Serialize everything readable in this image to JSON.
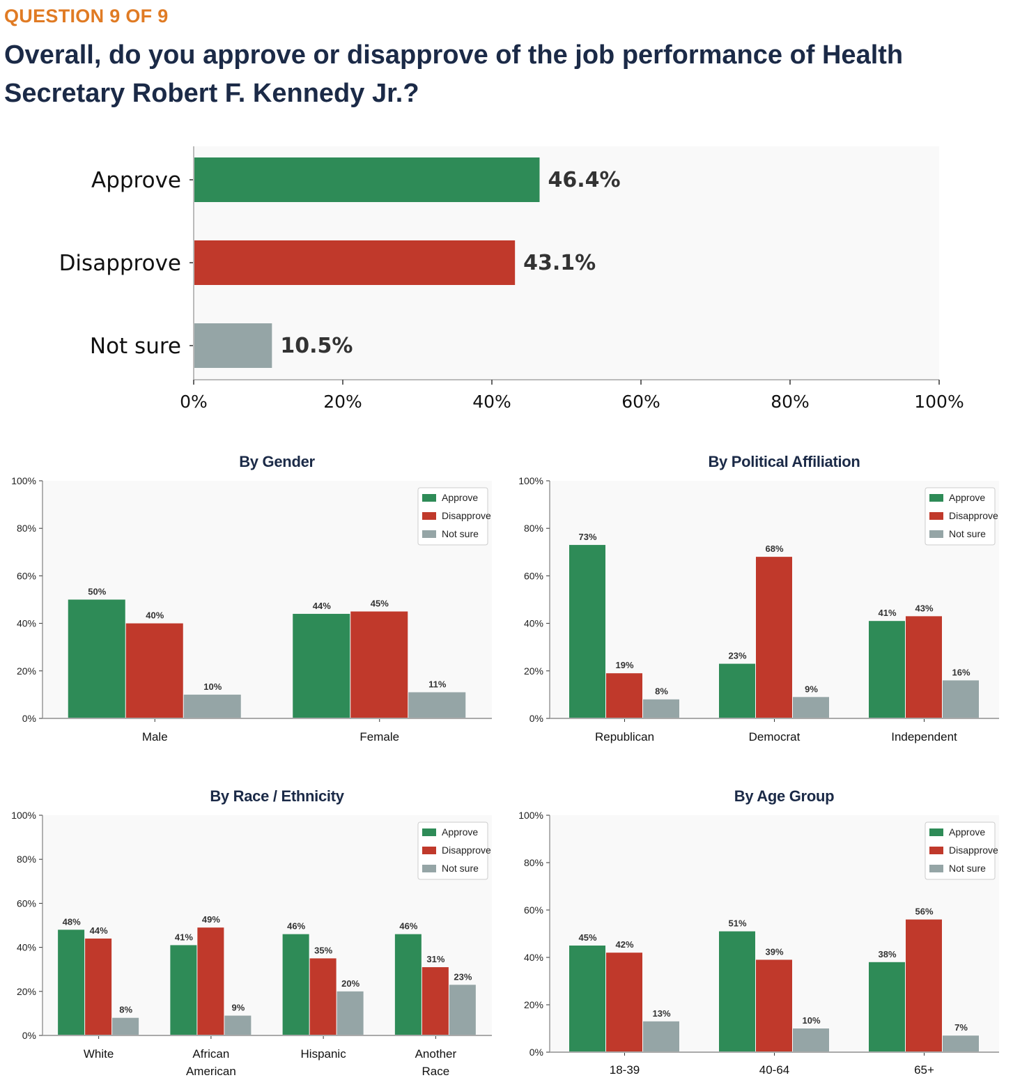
{
  "header": {
    "question_number": "QUESTION 9 OF 9",
    "question_text": "Overall, do you approve or disapprove of the job performance of Health Secretary Robert F. Kennedy Jr.?"
  },
  "colors": {
    "approve": "#2e8b57",
    "disapprove": "#c0392b",
    "not_sure": "#95a5a6",
    "panel_bg": "#f9f9f9"
  },
  "chart_data": [
    {
      "id": "overall",
      "type": "bar",
      "orientation": "horizontal",
      "title": "",
      "categories": [
        "Approve",
        "Disapprove",
        "Not sure"
      ],
      "values": [
        46.4,
        43.1,
        10.5
      ],
      "value_labels": [
        "46.4%",
        "43.1%",
        "10.5%"
      ],
      "xlim": [
        0,
        100
      ],
      "xticks": [
        "0%",
        "20%",
        "40%",
        "60%",
        "80%",
        "100%"
      ]
    },
    {
      "id": "gender",
      "type": "bar",
      "title": "By Gender",
      "categories": [
        "Male",
        "Female"
      ],
      "series": [
        {
          "name": "Approve",
          "values": [
            50,
            44
          ]
        },
        {
          "name": "Disapprove",
          "values": [
            40,
            45
          ]
        },
        {
          "name": "Not sure",
          "values": [
            10,
            11
          ]
        }
      ],
      "ylim": [
        0,
        100
      ],
      "yticks": [
        "0%",
        "20%",
        "40%",
        "60%",
        "80%",
        "100%"
      ],
      "legend": "top-right"
    },
    {
      "id": "party",
      "type": "bar",
      "title": "By Political Affiliation",
      "categories": [
        "Republican",
        "Democrat",
        "Independent"
      ],
      "series": [
        {
          "name": "Approve",
          "values": [
            73,
            23,
            41
          ]
        },
        {
          "name": "Disapprove",
          "values": [
            19,
            68,
            43
          ]
        },
        {
          "name": "Not sure",
          "values": [
            8,
            9,
            16
          ]
        }
      ],
      "ylim": [
        0,
        100
      ],
      "yticks": [
        "0%",
        "20%",
        "40%",
        "60%",
        "80%",
        "100%"
      ],
      "legend": "top-right"
    },
    {
      "id": "race",
      "type": "bar",
      "title": "By Race / Ethnicity",
      "categories": [
        "White",
        "African American",
        "Hispanic",
        "Another Race"
      ],
      "series": [
        {
          "name": "Approve",
          "values": [
            48,
            41,
            46,
            46
          ]
        },
        {
          "name": "Disapprove",
          "values": [
            44,
            49,
            35,
            31
          ]
        },
        {
          "name": "Not sure",
          "values": [
            8,
            9,
            20,
            23
          ]
        }
      ],
      "ylim": [
        0,
        100
      ],
      "yticks": [
        "0%",
        "20%",
        "40%",
        "60%",
        "80%",
        "100%"
      ],
      "legend": "top-right"
    },
    {
      "id": "age",
      "type": "bar",
      "title": "By Age Group",
      "categories": [
        "18-39",
        "40-64",
        "65+"
      ],
      "series": [
        {
          "name": "Approve",
          "values": [
            45,
            51,
            38
          ]
        },
        {
          "name": "Disapprove",
          "values": [
            42,
            39,
            56
          ]
        },
        {
          "name": "Not sure",
          "values": [
            13,
            10,
            7
          ]
        }
      ],
      "ylim": [
        0,
        100
      ],
      "yticks": [
        "0%",
        "20%",
        "40%",
        "60%",
        "80%",
        "100%"
      ],
      "legend": "top-right"
    }
  ]
}
